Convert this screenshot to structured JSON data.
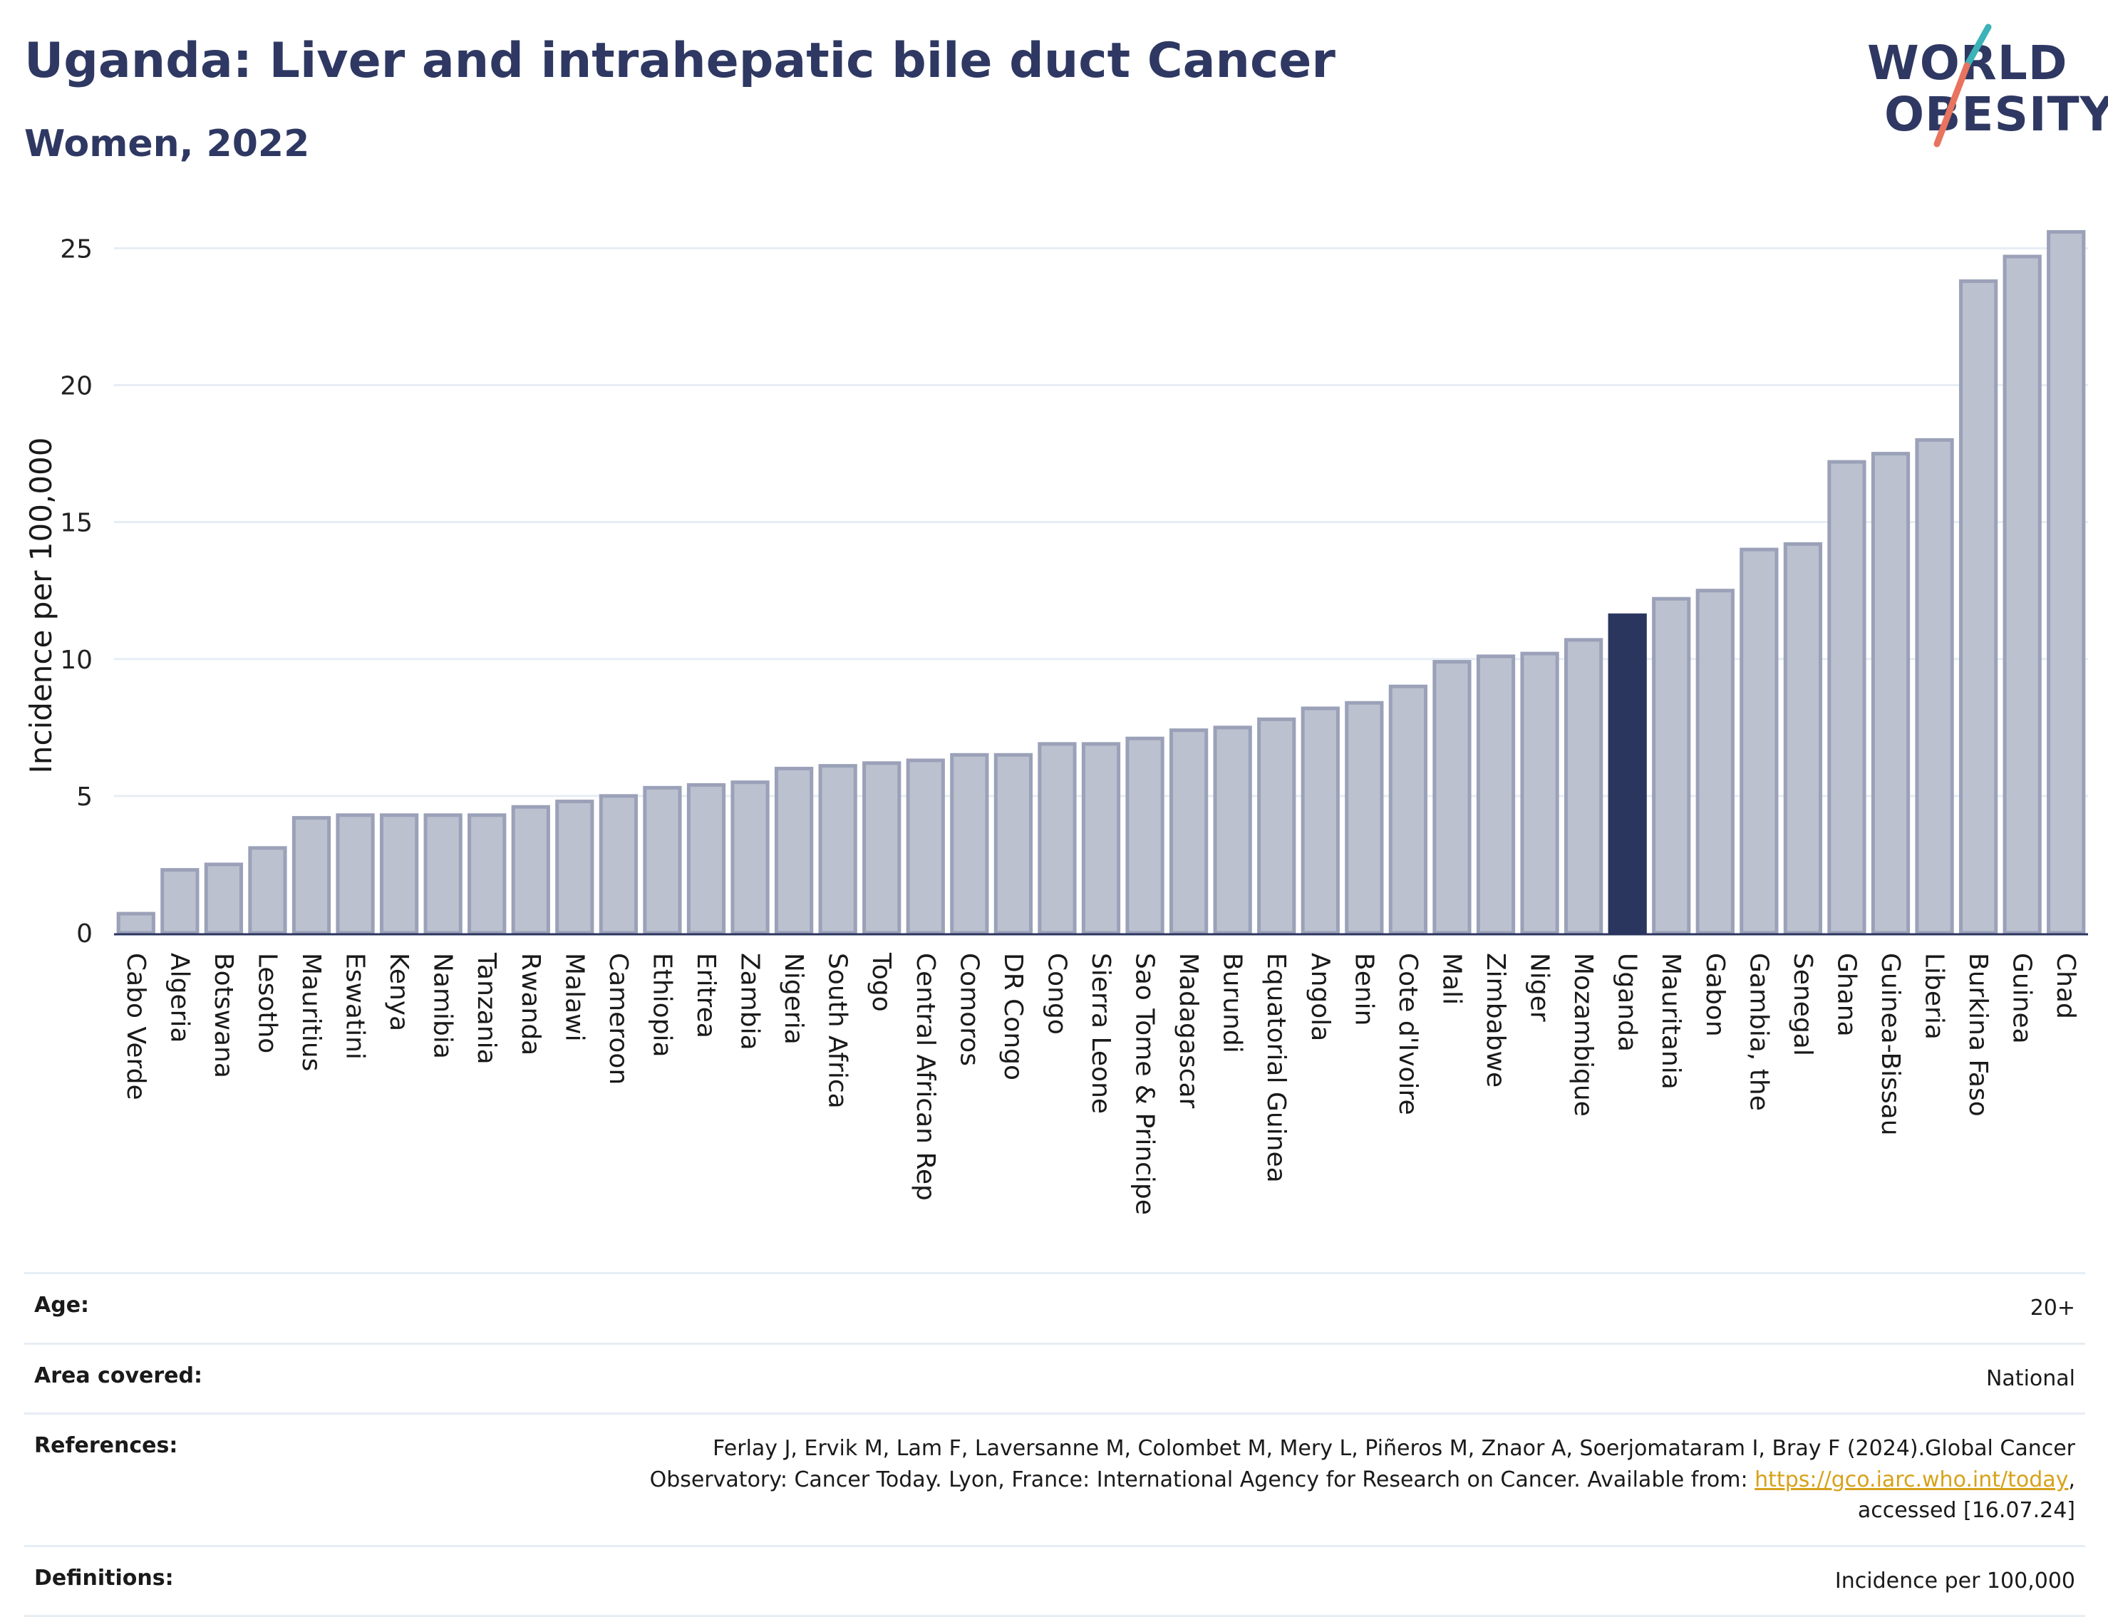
{
  "header": {
    "title": "Uganda: Liver and intrahepatic bile duct Cancer",
    "subtitle": "Women, 2022",
    "logo_line1": "WORLD",
    "logo_line2": "OBESITY"
  },
  "colors": {
    "bar": "#bcc1cf",
    "bar_border": "#9aa1b8",
    "highlight": "#2b365f",
    "grid": "#e6edf4",
    "text": "#2e3862",
    "logo_teal": "#3bb3b8",
    "logo_coral": "#e8735f"
  },
  "chart_data": {
    "type": "bar",
    "title": "Uganda: Liver and intrahepatic bile duct Cancer",
    "subtitle": "Women, 2022",
    "ylabel": "Incidence per 100,000",
    "xlabel": "",
    "ylim": [
      0,
      26
    ],
    "yticks": [
      0,
      5,
      10,
      15,
      20,
      25
    ],
    "grid": true,
    "highlight": "Uganda",
    "categories": [
      "Cabo Verde",
      "Algeria",
      "Botswana",
      "Lesotho",
      "Mauritius",
      "Eswatini",
      "Kenya",
      "Namibia",
      "Tanzania",
      "Rwanda",
      "Malawi",
      "Cameroon",
      "Ethiopia",
      "Eritrea",
      "Zambia",
      "Nigeria",
      "South Africa",
      "Togo",
      "Central African Rep",
      "Comoros",
      "DR Congo",
      "Congo",
      "Sierra Leone",
      "Sao Tome & Principe",
      "Madagascar",
      "Burundi",
      "Equatorial Guinea",
      "Angola",
      "Benin",
      "Cote d'Ivoire",
      "Mali",
      "Zimbabwe",
      "Niger",
      "Mozambique",
      "Uganda",
      "Mauritania",
      "Gabon",
      "Gambia, the",
      "Senegal",
      "Ghana",
      "Guinea-Bissau",
      "Liberia",
      "Burkina Faso",
      "Guinea",
      "Chad"
    ],
    "values": [
      0.7,
      2.3,
      2.5,
      3.1,
      4.2,
      4.3,
      4.3,
      4.3,
      4.3,
      4.6,
      4.8,
      5.0,
      5.3,
      5.4,
      5.5,
      6.0,
      6.1,
      6.2,
      6.3,
      6.5,
      6.5,
      6.9,
      6.9,
      7.1,
      7.4,
      7.5,
      7.8,
      8.2,
      8.4,
      9.0,
      9.9,
      10.1,
      10.2,
      10.7,
      11.6,
      12.2,
      12.5,
      14.0,
      14.2,
      17.2,
      17.5,
      18.0,
      23.8,
      24.7,
      25.6
    ]
  },
  "meta": {
    "age_label": "Age:",
    "age_value": "20+",
    "area_label": "Area covered:",
    "area_value": "National",
    "references_label": "References:",
    "references_text1": "Ferlay J, Ervik M, Lam F, Laversanne M, Colombet M, Mery L, Piñeros M, Znaor A, Soerjomataram I, Bray F (2024).Global Cancer",
    "references_text2": "Observatory: Cancer Today. Lyon, France: International Agency for Research on Cancer. Available from: ",
    "references_link": "https://gco.iarc.who.int/today",
    "references_text3": ",",
    "references_text4": "accessed [16.07.24]",
    "definitions_label": "Definitions:",
    "definitions_value": "Incidence per 100,000"
  }
}
